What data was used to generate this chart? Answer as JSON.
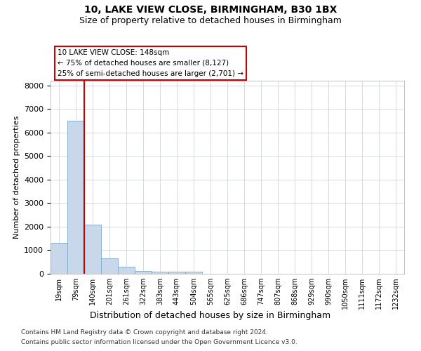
{
  "title1": "10, LAKE VIEW CLOSE, BIRMINGHAM, B30 1BX",
  "title2": "Size of property relative to detached houses in Birmingham",
  "xlabel": "Distribution of detached houses by size in Birmingham",
  "ylabel": "Number of detached properties",
  "footnote1": "Contains HM Land Registry data © Crown copyright and database right 2024.",
  "footnote2": "Contains public sector information licensed under the Open Government Licence v3.0.",
  "annotation_line1": "10 LAKE VIEW CLOSE: 148sqm",
  "annotation_line2": "← 75% of detached houses are smaller (8,127)",
  "annotation_line3": "25% of semi-detached houses are larger (2,701) →",
  "bar_color": "#c8d8ea",
  "bar_edge_color": "#7aaac8",
  "vline_color": "#cc0000",
  "annotation_box_color": "#cc0000",
  "grid_color": "#c8ccd8",
  "categories": [
    "19sqm",
    "79sqm",
    "140sqm",
    "201sqm",
    "261sqm",
    "322sqm",
    "383sqm",
    "443sqm",
    "504sqm",
    "565sqm",
    "625sqm",
    "686sqm",
    "747sqm",
    "807sqm",
    "868sqm",
    "929sqm",
    "990sqm",
    "1050sqm",
    "1111sqm",
    "1172sqm",
    "1232sqm"
  ],
  "values": [
    1300,
    6500,
    2100,
    650,
    300,
    130,
    80,
    80,
    80,
    0,
    0,
    0,
    0,
    0,
    0,
    0,
    0,
    0,
    0,
    0,
    0
  ],
  "ylim": [
    0,
    8200
  ],
  "yticks": [
    0,
    1000,
    2000,
    3000,
    4000,
    5000,
    6000,
    7000,
    8000
  ],
  "vline_bin_index": 2
}
